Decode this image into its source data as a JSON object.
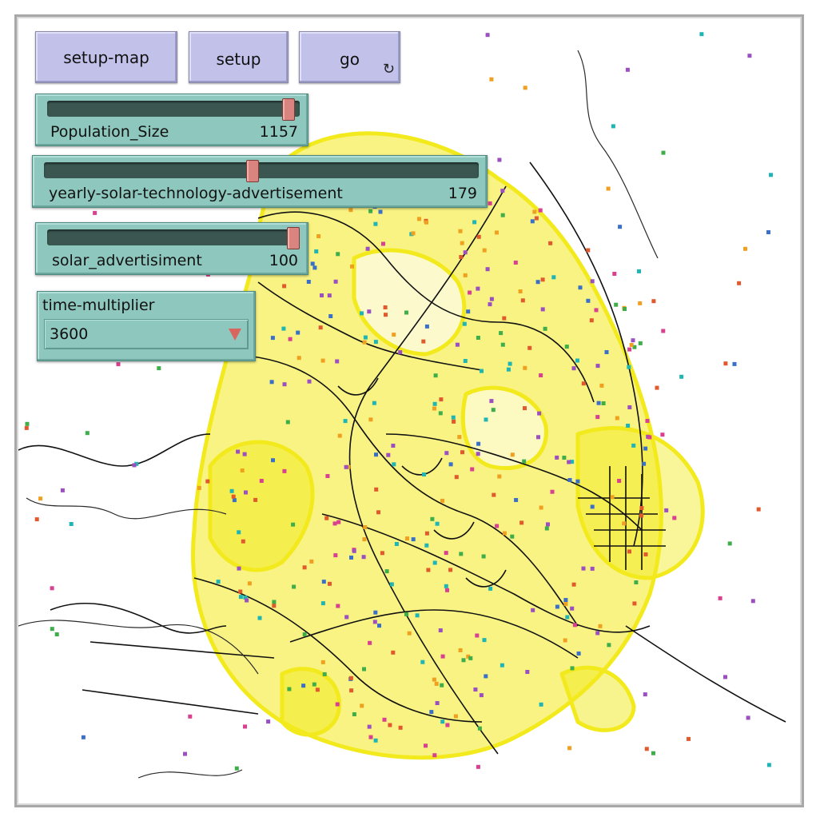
{
  "buttons": {
    "setup_map": "setup-map",
    "setup": "setup",
    "go": "go",
    "go_forever_icon": "↻"
  },
  "sliders": [
    {
      "name": "Population_Size",
      "value": "1157",
      "fraction": 0.98
    },
    {
      "name": "yearly-solar-technology-advertisement",
      "value": "179",
      "fraction": 0.48
    },
    {
      "name": "solar_advertisiment",
      "value": "100",
      "fraction": 1.0
    }
  ],
  "chooser": {
    "name": "time-multiplier",
    "value": "3600",
    "arrow_icon": "triangle-down-icon"
  },
  "colors": {
    "button": "#c1c1ea",
    "widget": "#8dc7bd",
    "roads": "#000000",
    "parcels": "#f2ea1c",
    "agents": [
      "#e05a2e",
      "#3fae4a",
      "#3a70c8",
      "#9b4fc0",
      "#20b5b5",
      "#d9408f",
      "#f0a020"
    ]
  }
}
